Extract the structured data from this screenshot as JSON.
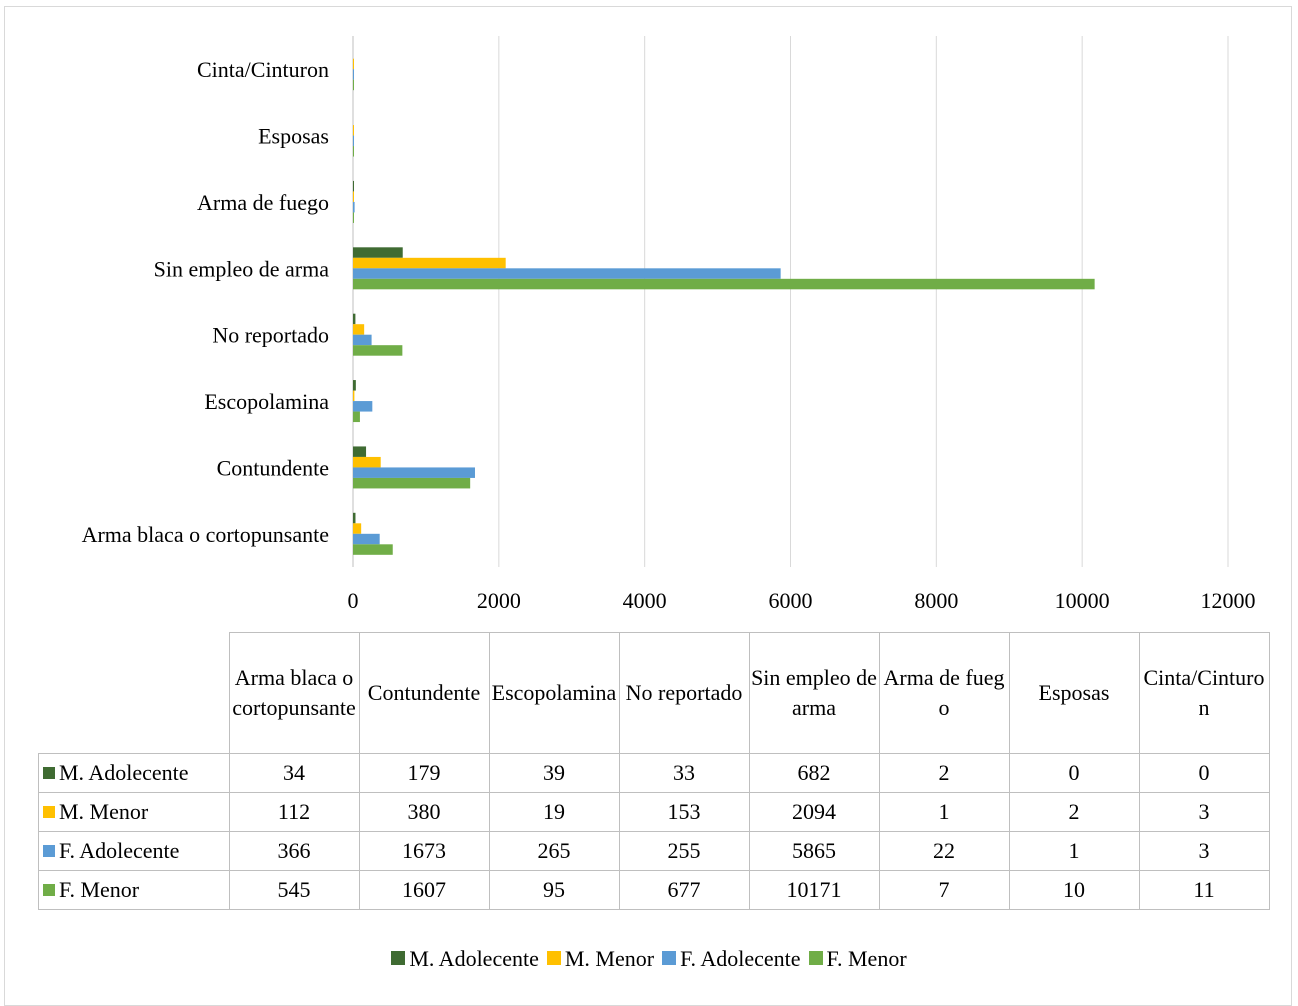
{
  "chart_data": {
    "type": "bar",
    "orientation": "horizontal",
    "categories": [
      "Arma blaca o cortopunsante",
      "Contundente",
      "Escopolamina",
      "No reportado",
      "Sin empleo de arma",
      "Arma de fuego",
      "Esposas",
      "Cinta/Cinturon"
    ],
    "series": [
      {
        "name": "M. Adolecente",
        "values": [
          34,
          179,
          39,
          33,
          682,
          2,
          0,
          0
        ]
      },
      {
        "name": "M. Menor",
        "values": [
          112,
          380,
          19,
          153,
          2094,
          1,
          2,
          3
        ]
      },
      {
        "name": "F. Adolecente",
        "values": [
          366,
          1673,
          265,
          255,
          5865,
          22,
          1,
          3
        ]
      },
      {
        "name": "F. Menor",
        "values": [
          545,
          1607,
          95,
          677,
          10171,
          7,
          10,
          11
        ]
      }
    ],
    "xlim": [
      0,
      12000
    ],
    "xticks": [
      "0",
      "2000",
      "4000",
      "6000",
      "8000",
      "10000",
      "12000"
    ],
    "grid": "vertical",
    "legend_position": "bottom",
    "data_table": true,
    "colors": [
      "#3f6b32",
      "#ffc000",
      "#5b9bd5",
      "#70ad47"
    ]
  },
  "table": {
    "headers": [
      "Arma blaca o cortopunsante",
      "Contundente",
      "Escopolamina",
      "No reportado",
      "Sin empleo de arma",
      "Arma de fuego",
      "Esposas",
      "Cinta/Cinturon"
    ]
  }
}
